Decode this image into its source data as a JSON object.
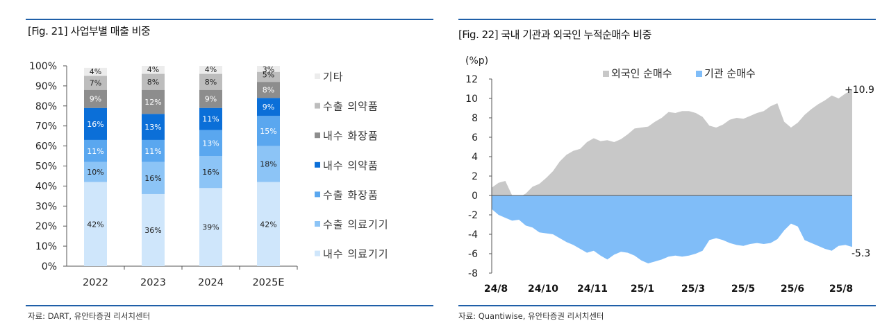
{
  "colors": {
    "rule": "#1f5fa8",
    "domestic_medical": "#cfe6fb",
    "export_medical": "#8cc4f6",
    "export_cosmetics": "#5aa7ef",
    "domestic_pharma": "#0b6fd8",
    "domestic_cosmetics": "#8d8d8d",
    "export_pharma": "#bdbdbd",
    "other": "#ececec",
    "foreign": "#c8c8c8",
    "institution": "#80bdf8"
  },
  "left": {
    "title": "[Fig. 21] 사업부별 매출 비중",
    "source": "자료: DART, 유안타증권 리서치센터"
  },
  "right": {
    "title": "[Fig. 22] 국내 기관과 외국인 누적순매수 비중",
    "source": "자료: Quantiwise, 유안타증권 리서치센터"
  },
  "chart_data": [
    {
      "type": "bar",
      "stacked": true,
      "title": "[Fig. 21] 사업부별 매출 비중",
      "categories": [
        "2022",
        "2023",
        "2024",
        "2025E"
      ],
      "y_ticks": [
        "0%",
        "10%",
        "20%",
        "30%",
        "40%",
        "50%",
        "60%",
        "70%",
        "80%",
        "90%",
        "100%"
      ],
      "ylim": [
        0,
        100
      ],
      "legend_position": "right",
      "series": [
        {
          "name": "내수 의료기기",
          "values": [
            42,
            36,
            39,
            42
          ],
          "labels": [
            "42%",
            "36%",
            "39%",
            "42%"
          ]
        },
        {
          "name": "수출 의료기기",
          "values": [
            10,
            16,
            16,
            18
          ],
          "labels": [
            "10%",
            "16%",
            "16%",
            "18%"
          ]
        },
        {
          "name": "수출 화장품",
          "values": [
            11,
            11,
            13,
            15
          ],
          "labels": [
            "11%",
            "11%",
            "13%",
            "15%"
          ]
        },
        {
          "name": "내수 의약품",
          "values": [
            16,
            13,
            11,
            9
          ],
          "labels": [
            "16%",
            "13%",
            "11%",
            "9%"
          ]
        },
        {
          "name": "내수 화장품",
          "values": [
            9,
            12,
            9,
            8
          ],
          "labels": [
            "9%",
            "12%",
            "9%",
            "8%"
          ]
        },
        {
          "name": "수출 의약품",
          "values": [
            7,
            8,
            8,
            5
          ],
          "labels": [
            "7%",
            "8%",
            "8%",
            "5%"
          ]
        },
        {
          "name": "기타",
          "values": [
            4,
            4,
            4,
            3
          ],
          "labels": [
            "4%",
            "4%",
            "4%",
            "3%"
          ]
        }
      ],
      "legend_order": [
        "기타",
        "수출 의약품",
        "내수 화장품",
        "내수 의약품",
        "수출 화장품",
        "수출 의료기기",
        "내수 의료기기"
      ]
    },
    {
      "type": "area",
      "title": "[Fig. 22] 국내 기관과 외국인 누적순매수 비중",
      "y_unit": "(%p)",
      "ylim": [
        -8,
        12
      ],
      "y_ticks": [
        "-8",
        "-6",
        "-4",
        "-2",
        "0",
        "2",
        "4",
        "6",
        "8",
        "10",
        "12"
      ],
      "x_ticks": [
        "24/8",
        "24/10",
        "24/11",
        "25/1",
        "25/3",
        "25/5",
        "25/6",
        "25/8"
      ],
      "legend_position": "top",
      "series": [
        {
          "name": "외국인 순매수",
          "values": [
            0.8,
            1.3,
            1.5,
            0.0,
            -0.2,
            0.2,
            0.9,
            1.2,
            1.8,
            2.5,
            3.5,
            4.2,
            4.6,
            4.8,
            5.5,
            5.9,
            5.6,
            5.7,
            5.5,
            5.8,
            6.3,
            6.9,
            7.0,
            7.1,
            7.6,
            8.0,
            8.6,
            8.5,
            8.7,
            8.7,
            8.5,
            8.1,
            7.2,
            7.0,
            7.3,
            7.8,
            8.0,
            7.9,
            8.2,
            8.5,
            8.7,
            9.2,
            9.5,
            7.6,
            7.0,
            7.5,
            8.3,
            8.9,
            9.4,
            9.8,
            10.3,
            10.0,
            10.5,
            10.9
          ],
          "end_label": "+10.9"
        },
        {
          "name": "기관 순매수",
          "values": [
            -1.4,
            -2.0,
            -2.3,
            -2.6,
            -2.5,
            -3.1,
            -3.3,
            -3.8,
            -3.9,
            -4.0,
            -4.4,
            -4.8,
            -5.1,
            -5.5,
            -5.9,
            -5.7,
            -6.2,
            -6.6,
            -6.1,
            -5.8,
            -5.9,
            -6.2,
            -6.7,
            -7.0,
            -6.8,
            -6.6,
            -6.3,
            -6.2,
            -6.3,
            -6.2,
            -6.0,
            -5.7,
            -4.6,
            -4.4,
            -4.6,
            -4.9,
            -5.1,
            -5.2,
            -5.0,
            -4.9,
            -5.0,
            -4.9,
            -4.5,
            -3.6,
            -2.9,
            -3.2,
            -4.6,
            -4.9,
            -5.2,
            -5.5,
            -5.7,
            -5.2,
            -5.1,
            -5.3
          ],
          "end_label": "-5.3"
        }
      ]
    }
  ]
}
